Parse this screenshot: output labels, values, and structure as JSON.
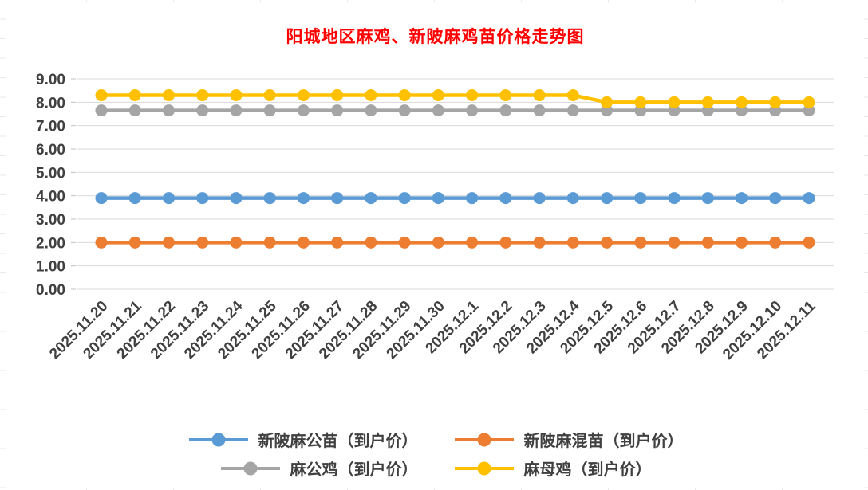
{
  "chart_data": {
    "type": "line",
    "title": "阳城地区麻鸡、新陂麻鸡苗价格走势图",
    "title_color": "#FF0000",
    "xlabel": "",
    "ylabel": "",
    "ylim": [
      0,
      9
    ],
    "ytick_step": 1,
    "ytick_labels": [
      "0.00",
      "1.00",
      "2.00",
      "3.00",
      "4.00",
      "5.00",
      "6.00",
      "7.00",
      "8.00",
      "9.00"
    ],
    "grid": true,
    "legend_position": "bottom",
    "legend_rows": [
      [
        0,
        1
      ],
      [
        2,
        3
      ]
    ],
    "categories": [
      "2025.11.20",
      "2025.11.21",
      "2025.11.22",
      "2025.11.23",
      "2025.11.24",
      "2025.11.25",
      "2025.11.26",
      "2025.11.27",
      "2025.11.28",
      "2025.11.29",
      "2025.11.30",
      "2025.12.1",
      "2025.12.2",
      "2025.12.3",
      "2025.12.4",
      "2025.12.5",
      "2025.12.6",
      "2025.12.7",
      "2025.12.8",
      "2025.12.9",
      "2025.12.10",
      "2025.12.11"
    ],
    "series": [
      {
        "name": "新陂麻公苗（到户价）",
        "color": "#5B9BD5",
        "values": [
          3.9,
          3.9,
          3.9,
          3.9,
          3.9,
          3.9,
          3.9,
          3.9,
          3.9,
          3.9,
          3.9,
          3.9,
          3.9,
          3.9,
          3.9,
          3.9,
          3.9,
          3.9,
          3.9,
          3.9,
          3.9,
          3.9
        ]
      },
      {
        "name": "新陂麻混苗（到户价）",
        "color": "#ED7D31",
        "values": [
          2.0,
          2.0,
          2.0,
          2.0,
          2.0,
          2.0,
          2.0,
          2.0,
          2.0,
          2.0,
          2.0,
          2.0,
          2.0,
          2.0,
          2.0,
          2.0,
          2.0,
          2.0,
          2.0,
          2.0,
          2.0,
          2.0
        ]
      },
      {
        "name": "麻公鸡（到户价）",
        "color": "#A5A5A5",
        "values": [
          7.65,
          7.65,
          7.65,
          7.65,
          7.65,
          7.65,
          7.65,
          7.65,
          7.65,
          7.65,
          7.65,
          7.65,
          7.65,
          7.65,
          7.65,
          7.65,
          7.65,
          7.65,
          7.65,
          7.65,
          7.65,
          7.65
        ]
      },
      {
        "name": "麻母鸡（到户价）",
        "color": "#FFC000",
        "values": [
          8.3,
          8.3,
          8.3,
          8.3,
          8.3,
          8.3,
          8.3,
          8.3,
          8.3,
          8.3,
          8.3,
          8.3,
          8.3,
          8.3,
          8.3,
          8.0,
          8.0,
          8.0,
          8.0,
          8.0,
          8.0,
          8.0
        ]
      }
    ]
  }
}
